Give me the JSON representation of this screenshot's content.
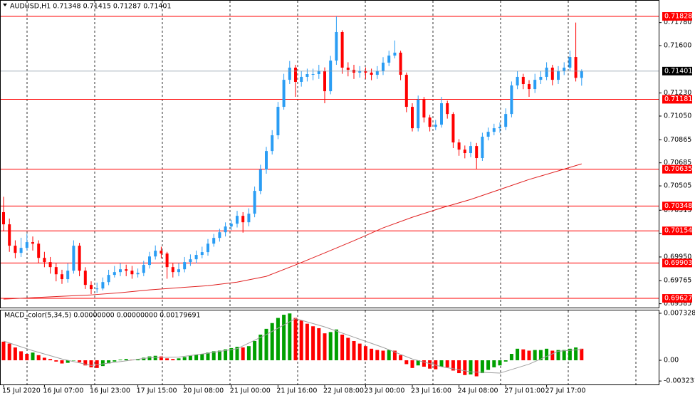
{
  "chart_data": [
    {
      "type": "candlestick",
      "title": "AUDUSD,H1  0.71348 0.71415 0.71287 0.71401",
      "categories": [
        "15 Jul 2020",
        null,
        null,
        null,
        null,
        null,
        null,
        "16 Jul 07:00",
        null,
        null,
        null,
        null,
        null,
        null,
        null,
        "16 Jul 23:00",
        null,
        null,
        null,
        null,
        null,
        null,
        null,
        "17 Jul 15:00",
        null,
        null,
        null,
        null,
        null,
        null,
        null,
        "20 Jul 08:00",
        null,
        null,
        null,
        null,
        null,
        null,
        null,
        "21 Jul 00:00",
        null,
        null,
        null,
        null,
        null,
        null,
        null,
        "21 Jul 16:00",
        null,
        null,
        null,
        null,
        null,
        null,
        null,
        "22 Jul 08:00",
        null,
        null,
        null,
        null,
        null,
        null,
        "23 Jul 00:00",
        null,
        null,
        null,
        null,
        null,
        null,
        null,
        "23 Jul 16:00",
        null,
        null,
        null,
        null,
        null,
        null,
        null,
        "24 Jul 08:00",
        null,
        null,
        null,
        null,
        null,
        null,
        null,
        "27 Jul 01:00",
        null,
        null,
        null,
        null,
        null,
        null,
        "27 Jul 17:00",
        null,
        null,
        null,
        null,
        null,
        null
      ],
      "open": [
        0.703,
        0.70205,
        0.70038,
        0.69982,
        0.70021,
        0.70066,
        0.70054,
        0.69943,
        0.6991,
        0.69871,
        0.69815,
        0.69777,
        0.69843,
        0.70038,
        0.69843,
        0.69732,
        0.69699,
        0.69704,
        0.69754,
        0.6981,
        0.69832,
        0.69854,
        0.69843,
        0.69815,
        0.69826,
        0.69888,
        0.69954,
        0.69999,
        0.69977,
        0.69871,
        0.69832,
        0.69854,
        0.6991,
        0.69932,
        0.69966,
        0.69988,
        0.70054,
        0.70099,
        0.70143,
        0.70188,
        0.7021,
        0.70271,
        0.70221,
        0.70288,
        0.70466,
        0.70633,
        0.70777,
        0.709,
        0.71122,
        0.71333,
        0.71428,
        0.71317,
        0.71356,
        0.71378,
        0.71378,
        0.714,
        0.71244,
        0.71483,
        0.71706,
        0.71428,
        0.71411,
        0.71389,
        0.714,
        0.71389,
        0.71372,
        0.714,
        0.71467,
        0.71522,
        0.71545,
        0.71372,
        0.71122,
        0.70955,
        0.71178,
        0.71039,
        0.70966,
        0.70983,
        0.7115,
        0.71066,
        0.70844,
        0.70788,
        0.70761,
        0.70816,
        0.70722,
        0.70889,
        0.70927,
        0.70955,
        0.70966,
        0.71066,
        0.71289,
        0.71356,
        0.713,
        0.71261,
        0.71333,
        0.71356,
        0.71428,
        0.71333,
        0.714,
        0.71428,
        0.71511,
        0.71348
      ],
      "high": [
        0.7042,
        0.7025,
        0.7008,
        0.701,
        0.7013,
        0.7011,
        0.7008,
        0.6999,
        0.6995,
        0.699,
        0.6985,
        0.699,
        0.7008,
        0.7006,
        0.6987,
        0.6976,
        0.6975,
        0.6979,
        0.6985,
        0.6988,
        0.699,
        0.6989,
        0.6988,
        0.6986,
        0.6992,
        0.6999,
        0.7004,
        0.7003,
        0.6999,
        0.699,
        0.699,
        0.6995,
        0.6997,
        0.7,
        0.7003,
        0.7009,
        0.7013,
        0.7017,
        0.7022,
        0.7024,
        0.7031,
        0.703,
        0.7033,
        0.705,
        0.7067,
        0.7081,
        0.7094,
        0.7116,
        0.7138,
        0.7148,
        0.7145,
        0.714,
        0.7142,
        0.7142,
        0.7145,
        0.7143,
        0.7152,
        0.71828,
        0.7172,
        0.7147,
        0.7145,
        0.7144,
        0.7143,
        0.7142,
        0.7144,
        0.7151,
        0.7156,
        0.7164,
        0.7156,
        0.7139,
        0.7115,
        0.7121,
        0.712,
        0.7106,
        0.7102,
        0.712,
        0.7117,
        0.7108,
        0.7087,
        0.7082,
        0.7085,
        0.7084,
        0.7092,
        0.7096,
        0.7099,
        0.71,
        0.7111,
        0.7132,
        0.714,
        0.7138,
        0.7133,
        0.7138,
        0.714,
        0.7147,
        0.7145,
        0.7144,
        0.7147,
        0.7156,
        0.7178,
        0.71415
      ],
      "low": [
        0.7015,
        0.6999,
        0.6994,
        0.6995,
        0.7,
        0.7,
        0.699,
        0.6987,
        0.6982,
        0.6976,
        0.6974,
        0.6975,
        0.6982,
        0.698,
        0.697,
        0.6966,
        0.6967,
        0.6969,
        0.6973,
        0.6979,
        0.698,
        0.698,
        0.6978,
        0.6979,
        0.698,
        0.6986,
        0.6993,
        0.6994,
        0.6978,
        0.6979,
        0.698,
        0.6983,
        0.6988,
        0.699,
        0.6994,
        0.6996,
        0.7003,
        0.7007,
        0.7011,
        0.7016,
        0.7018,
        0.7014,
        0.7019,
        0.7026,
        0.7044,
        0.706,
        0.7075,
        0.7087,
        0.711,
        0.713,
        0.712,
        0.7128,
        0.7132,
        0.7133,
        0.7134,
        0.7115,
        0.7122,
        0.7145,
        0.7138,
        0.7136,
        0.7134,
        0.7135,
        0.7134,
        0.7133,
        0.7134,
        0.7137,
        0.7144,
        0.715,
        0.7133,
        0.7108,
        0.7093,
        0.7093,
        0.71,
        0.7093,
        0.7094,
        0.7096,
        0.7103,
        0.708,
        0.7074,
        0.7072,
        0.7073,
        0.70635,
        0.707,
        0.7086,
        0.709,
        0.7092,
        0.7094,
        0.7104,
        0.7126,
        0.7126,
        0.712,
        0.7123,
        0.713,
        0.7133,
        0.7129,
        0.713,
        0.7137,
        0.714,
        0.7132,
        0.71287
      ],
      "close": [
        0.70205,
        0.70038,
        0.69982,
        0.70021,
        0.70066,
        0.70054,
        0.69943,
        0.6991,
        0.69871,
        0.69815,
        0.69777,
        0.69843,
        0.70038,
        0.69843,
        0.69732,
        0.69699,
        0.69704,
        0.69754,
        0.6981,
        0.69832,
        0.69854,
        0.69843,
        0.69815,
        0.69826,
        0.69888,
        0.69954,
        0.69999,
        0.69977,
        0.69871,
        0.69832,
        0.69854,
        0.6991,
        0.69932,
        0.69966,
        0.69988,
        0.70054,
        0.70099,
        0.70143,
        0.70188,
        0.7021,
        0.70271,
        0.70221,
        0.70288,
        0.70466,
        0.70633,
        0.70777,
        0.709,
        0.71122,
        0.71333,
        0.71428,
        0.71317,
        0.71356,
        0.71378,
        0.71378,
        0.714,
        0.71244,
        0.71483,
        0.71706,
        0.71428,
        0.71411,
        0.71389,
        0.714,
        0.71389,
        0.71372,
        0.714,
        0.71467,
        0.71522,
        0.71545,
        0.71372,
        0.71122,
        0.70955,
        0.71178,
        0.71039,
        0.70966,
        0.70983,
        0.7115,
        0.71066,
        0.70844,
        0.70788,
        0.70761,
        0.70816,
        0.70722,
        0.70889,
        0.70927,
        0.70955,
        0.70966,
        0.71066,
        0.71289,
        0.71356,
        0.713,
        0.71261,
        0.71333,
        0.71356,
        0.71428,
        0.71333,
        0.714,
        0.71428,
        0.71511,
        0.71348,
        0.71401
      ],
      "up_color": "#2a9df4",
      "down_color": "#ff0000",
      "ylim": [
        0.69555,
        0.71956
      ],
      "yticks": [
        {
          "value": 0.7178,
          "label": "0.71780"
        },
        {
          "value": 0.716,
          "label": "0.71600"
        },
        {
          "value": 0.7123,
          "label": "0.71230"
        },
        {
          "value": 0.7105,
          "label": "0.71050"
        },
        0.70865,
        0.70685,
        0.70505,
        0.70315,
        0.70135,
        {
          "value": 0.6995,
          "label": "0.69950"
        },
        0.69765,
        0.69585
      ],
      "ma": {
        "color": "#e02020",
        "x": [
          0,
          5,
          10,
          15,
          20,
          25,
          30,
          35,
          40,
          45,
          50,
          55,
          60,
          65,
          70,
          75,
          80,
          85,
          90,
          95,
          99
        ],
        "values": [
          0.69621,
          0.69632,
          0.69643,
          0.69654,
          0.69671,
          0.69693,
          0.6971,
          0.69726,
          0.69754,
          0.69799,
          0.69888,
          0.69982,
          0.70077,
          0.70177,
          0.7026,
          0.70333,
          0.70399,
          0.70477,
          0.70555,
          0.70622,
          0.70677
        ]
      },
      "levels": {
        "color": "#ff0000",
        "values": [
          0.71828,
          0.71181,
          0.70635,
          0.70348,
          0.70154,
          0.69903,
          0.69627
        ]
      }
    },
    {
      "type": "bar",
      "title": "MACD_color(5,34,5) 0.00000000 0.00000000 0.00179691",
      "values": [
        0.0029,
        0.0026,
        0.002,
        0.0014,
        0.001,
        0.0012,
        0.0008,
        0.0004,
        0.0002,
        -0.0002,
        -0.0005,
        -0.0004,
        0.0,
        -0.0003,
        -0.0008,
        -0.0011,
        -0.0012,
        -0.0009,
        -0.0005,
        -0.0002,
        0.0001,
        0.0002,
        0.0001,
        0.0002,
        0.0004,
        0.0006,
        0.0007,
        0.0006,
        0.0003,
        0.0002,
        0.0003,
        0.0005,
        0.0007,
        0.0009,
        0.001,
        0.0012,
        0.0014,
        0.0015,
        0.0017,
        0.0019,
        0.0021,
        0.002,
        0.0022,
        0.003,
        0.004,
        0.0049,
        0.0058,
        0.0066,
        0.0071,
        0.0073,
        0.0066,
        0.0062,
        0.0057,
        0.0053,
        0.005,
        0.0042,
        0.0044,
        0.0048,
        0.004,
        0.0035,
        0.003,
        0.0026,
        0.0022,
        0.0018,
        0.0016,
        0.0015,
        0.0016,
        0.0015,
        0.0008,
        -0.0006,
        -0.0012,
        -0.0008,
        -0.001,
        -0.0013,
        -0.0014,
        -0.001,
        -0.0011,
        -0.0016,
        -0.002,
        -0.0023,
        -0.0022,
        -0.0025,
        -0.002,
        -0.0015,
        -0.0011,
        -0.0008,
        -0.0002,
        0.001,
        0.0018,
        0.0017,
        0.0015,
        0.0016,
        0.0016,
        0.0018,
        0.0015,
        0.0016,
        0.0016,
        0.0018,
        0.002,
        0.0018
      ],
      "up_color": "#00a000",
      "down_color": "#ff0000",
      "ylim": [
        -0.00377,
        0.00777
      ],
      "yticks": [
        0.0073284,
        {
          "value": 0,
          "label": "0.00"
        },
        -0.003231
      ],
      "signal": {
        "color": "#a0a0a0",
        "x": [
          0,
          5,
          10,
          15,
          20,
          25,
          30,
          35,
          40,
          45,
          50,
          55,
          60,
          65,
          70,
          75,
          80,
          85,
          90,
          95,
          99
        ],
        "values": [
          0.003,
          0.0015,
          0.0002,
          -0.0008,
          -0.0002,
          0.0004,
          0.0005,
          0.0011,
          0.0018,
          0.004,
          0.0065,
          0.0052,
          0.0036,
          0.002,
          0.0002,
          -0.001,
          -0.0018,
          -0.002,
          -0.0006,
          0.0014,
          0.0017
        ]
      }
    }
  ]
}
